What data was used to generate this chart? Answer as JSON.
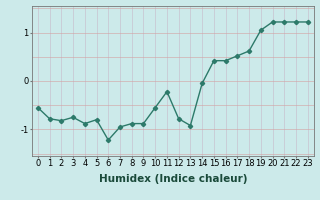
{
  "x": [
    0,
    1,
    2,
    3,
    4,
    5,
    6,
    7,
    8,
    9,
    10,
    11,
    12,
    13,
    14,
    15,
    16,
    17,
    18,
    19,
    20,
    21,
    22,
    23
  ],
  "y": [
    -0.55,
    -0.78,
    -0.82,
    -0.75,
    -0.88,
    -0.8,
    -1.22,
    -0.95,
    -0.88,
    -0.88,
    -0.55,
    -0.22,
    -0.78,
    -0.92,
    -0.05,
    0.42,
    0.42,
    0.52,
    0.62,
    1.05,
    1.22,
    1.22,
    1.22,
    1.22
  ],
  "line_color": "#2d7a6a",
  "marker": "D",
  "marker_size": 2.2,
  "bg_color": "#cceaea",
  "grid_color_v": "#c8b8c8",
  "grid_color_h": "#d4a0a0",
  "xlabel": "Humidex (Indice chaleur)",
  "xlabel_fontsize": 7.5,
  "tick_fontsize": 6,
  "yticks": [
    -1,
    0,
    1
  ],
  "ylim": [
    -1.55,
    1.55
  ],
  "xlim": [
    -0.5,
    23.5
  ],
  "linewidth": 1.0
}
